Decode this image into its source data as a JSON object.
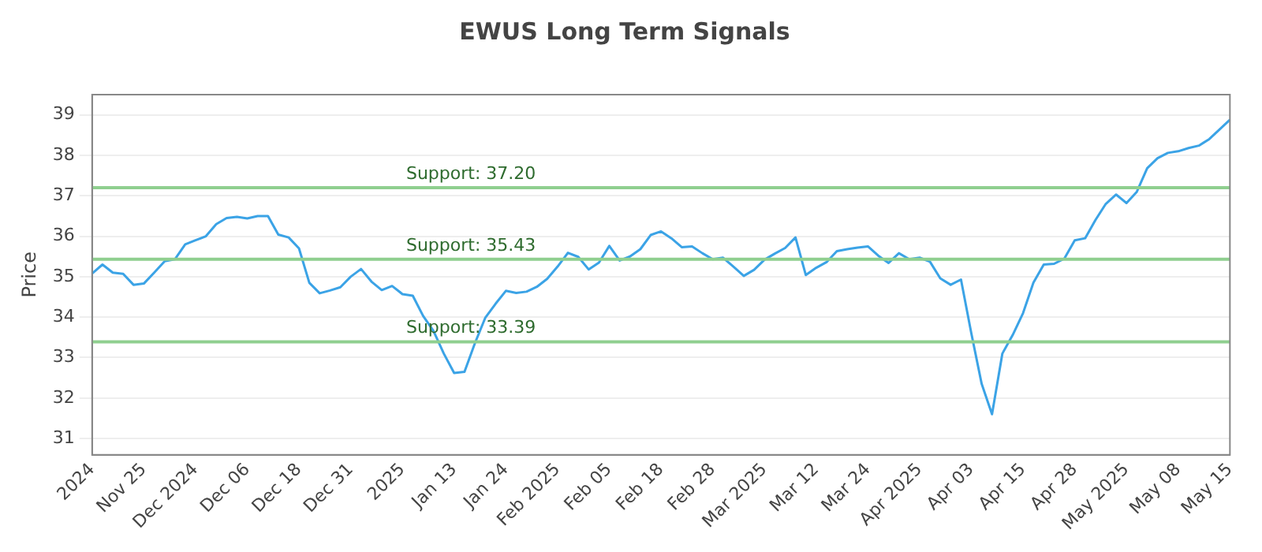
{
  "chart_data": {
    "type": "line",
    "title": "EWUS Long Term Signals",
    "ylabel": "Price",
    "categories": [
      "2024",
      null,
      null,
      null,
      null,
      "Nov 25",
      null,
      null,
      null,
      null,
      "Dec 2024",
      null,
      null,
      null,
      null,
      "Dec 06",
      null,
      null,
      null,
      null,
      "Dec 18",
      null,
      null,
      null,
      null,
      "Dec 31",
      null,
      null,
      null,
      null,
      "2025",
      null,
      null,
      null,
      null,
      "Jan 13",
      null,
      null,
      null,
      null,
      "Jan 24",
      null,
      null,
      null,
      null,
      "Feb 2025",
      null,
      null,
      null,
      null,
      "Feb 05",
      null,
      null,
      null,
      null,
      "Feb 18",
      null,
      null,
      null,
      null,
      "Feb 28",
      null,
      null,
      null,
      null,
      "Mar 2025",
      null,
      null,
      null,
      null,
      "Mar 12",
      null,
      null,
      null,
      null,
      "Mar 24",
      null,
      null,
      null,
      null,
      "Apr 2025",
      null,
      null,
      null,
      null,
      "Apr 03",
      null,
      null,
      null,
      null,
      "Apr 15",
      null,
      null,
      null,
      null,
      "Apr 28",
      null,
      null,
      null,
      null,
      "May 2025",
      null,
      null,
      null,
      null,
      "May 08",
      null,
      null,
      null,
      null,
      "May 15"
    ],
    "series": [
      {
        "color": "#3ba3e6",
        "values": [
          35.08,
          35.3,
          35.1,
          35.07,
          34.8,
          34.83,
          35.1,
          35.38,
          35.43,
          35.8,
          35.9,
          36.0,
          36.3,
          36.45,
          36.48,
          36.44,
          36.5,
          36.5,
          36.04,
          35.97,
          35.7,
          34.85,
          34.59,
          34.66,
          34.74,
          35.0,
          35.19,
          34.88,
          34.67,
          34.77,
          34.57,
          34.53,
          34.03,
          33.66,
          33.1,
          32.62,
          32.65,
          33.35,
          33.98,
          34.33,
          34.65,
          34.6,
          34.63,
          34.75,
          34.95,
          35.25,
          35.59,
          35.49,
          35.18,
          35.35,
          35.76,
          35.4,
          35.5,
          35.68,
          36.03,
          36.12,
          35.95,
          35.73,
          35.75,
          35.58,
          35.43,
          35.47,
          35.25,
          35.02,
          35.17,
          35.42,
          35.57,
          35.71,
          35.97,
          35.04,
          35.22,
          35.36,
          35.63,
          35.68,
          35.72,
          35.75,
          35.52,
          35.34,
          35.58,
          35.43,
          35.47,
          35.37,
          34.96,
          34.8,
          34.93,
          33.6,
          32.35,
          31.6,
          33.1,
          33.56,
          34.1,
          34.85,
          35.3,
          35.32,
          35.45,
          35.9,
          35.95,
          36.4,
          36.8,
          37.03,
          36.82,
          37.1,
          37.68,
          37.93,
          38.06,
          38.1,
          38.18,
          38.24,
          38.4,
          38.64,
          38.88
        ]
      }
    ],
    "ylim": [
      30.6,
      39.5
    ],
    "yticks": [
      31,
      32,
      33,
      34,
      35,
      36,
      37,
      38,
      39
    ],
    "grid": "y",
    "legend": false,
    "marker": "none",
    "line_style": "solid",
    "ref_lines": [
      {
        "axis": "y",
        "value": 37.2,
        "label": "Support: 37.20",
        "color": "#8fcf8f"
      },
      {
        "axis": "y",
        "value": 35.43,
        "label": "Support: 35.43",
        "color": "#8fcf8f"
      },
      {
        "axis": "y",
        "value": 33.39,
        "label": "Support: 33.39",
        "color": "#8fcf8f"
      }
    ]
  }
}
